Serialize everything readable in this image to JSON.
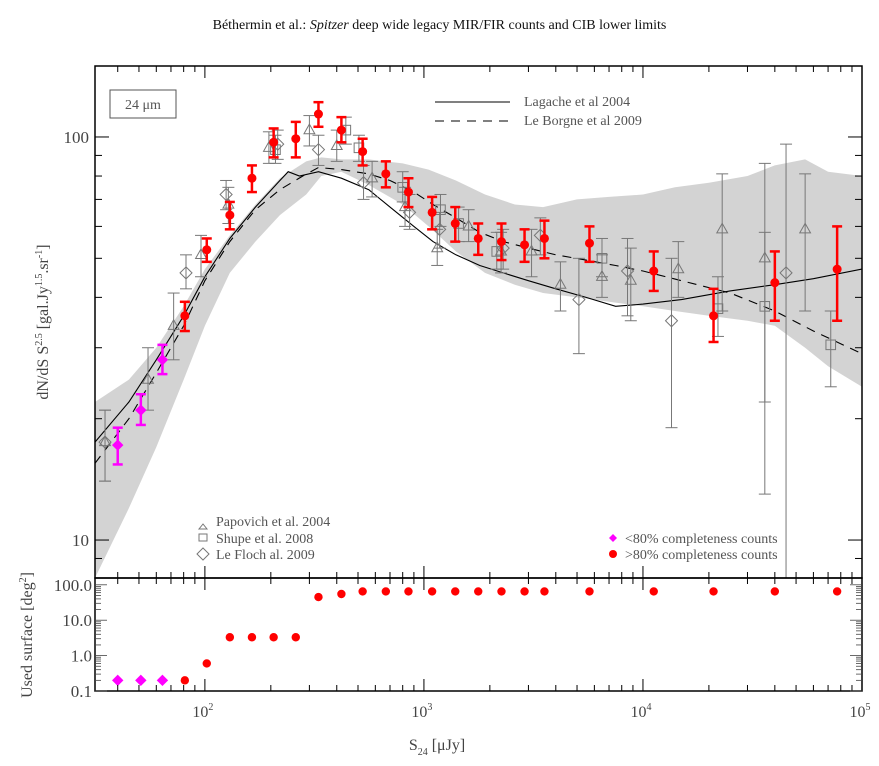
{
  "header": {
    "title_prefix": "Béthermin et al.: ",
    "title_italic": "Spitzer",
    "title_suffix": " deep wide legacy MIR/FIR counts and CIB lower limits"
  },
  "colors": {
    "red_points": "#ff0000",
    "magenta_points": "#ff00ff",
    "literature_points": "#777777",
    "band_fill": "#d3d3d3",
    "model_lines": "#000000"
  },
  "chart_data": [
    {
      "id": "main-panel",
      "type": "scatter",
      "xscale": "log",
      "yscale": "log",
      "xlim": [
        31.5,
        100000
      ],
      "ylim": [
        8.05,
        150
      ],
      "ylabel": "dN/dS S^2.5 [gal.Jy^1.5.sr^-1]",
      "ylabel_parts": {
        "main": "dN/dS S",
        "sup1": "2.5",
        "mid": " [gal.Jy",
        "sup2": "1.5",
        "mid2": ".sr",
        "sup3": "-1",
        "end": "]"
      },
      "yticks": [
        {
          "value": 10,
          "label": "10"
        },
        {
          "value": 100,
          "label": "100"
        }
      ],
      "annotation_box": "24 μm",
      "legend_lines": [
        {
          "label": "Lagache et al 2004",
          "style": "solid"
        },
        {
          "label": "Le Borgne et al 2009",
          "style": "dashed"
        }
      ],
      "legend_literature": [
        {
          "label": "Papovich et al. 2004",
          "marker": "triangle"
        },
        {
          "label": "Shupe et al. 2008",
          "marker": "square"
        },
        {
          "label": "Le Floch al. 2009",
          "marker": "diamond"
        }
      ],
      "legend_completeness": [
        {
          "label": "<80% completeness counts",
          "marker": "diamond",
          "color": "#ff00ff"
        },
        {
          "label": ">80% completeness counts",
          "marker": "circle",
          "color": "#ff0000"
        }
      ],
      "band": {
        "name": "model uncertainty band",
        "x": [
          31.5,
          45,
          60,
          80,
          100,
          130,
          170,
          220,
          290,
          340,
          420,
          560,
          800,
          1050,
          1400,
          1900,
          2600,
          3500,
          5000,
          7000,
          10000,
          14000,
          20000,
          30000,
          40000,
          55000,
          70000,
          100000
        ],
        "upper": [
          22,
          25,
          30,
          38,
          47,
          57,
          68,
          79,
          87,
          89,
          88,
          88,
          86,
          83,
          78,
          72,
          68,
          67,
          70,
          71,
          72,
          75,
          77,
          80,
          85,
          88,
          82,
          80
        ],
        "lower": [
          8.05,
          12,
          17,
          25,
          34,
          46,
          55,
          64,
          72,
          80,
          82,
          76,
          68,
          60,
          52,
          46,
          43,
          41,
          40,
          39,
          38,
          37,
          36,
          35,
          34,
          30,
          27,
          24
        ]
      },
      "lines": [
        {
          "name": "Lagache et al 2004",
          "style": "solid",
          "x": [
            31.5,
            45,
            60,
            80,
            100,
            130,
            170,
            220,
            240,
            270,
            330,
            420,
            560,
            700,
            900,
            1100,
            1400,
            1800,
            2300,
            3000,
            4000,
            5500,
            7500,
            10000,
            15000,
            25000,
            40000,
            60000,
            100000
          ],
          "y": [
            17.5,
            22,
            28,
            36,
            45,
            56,
            67,
            78,
            82,
            80,
            82,
            79,
            74,
            67,
            60,
            55,
            51,
            48,
            46,
            44,
            42,
            40,
            38,
            38.5,
            39.5,
            41.5,
            43,
            44.5,
            47
          ]
        },
        {
          "name": "Le Borgne et al 2009",
          "style": "dashed",
          "x": [
            31.5,
            45,
            60,
            80,
            100,
            130,
            170,
            220,
            280,
            330,
            420,
            560,
            700,
            900,
            1100,
            1400,
            1800,
            2300,
            3000,
            4000,
            5500,
            7500,
            10000,
            15000,
            25000,
            40000,
            60000,
            100000
          ],
          "y": [
            15.5,
            20,
            26,
            34,
            44,
            55,
            66,
            74,
            80,
            84,
            83,
            81,
            78,
            73,
            68,
            63,
            58,
            55,
            53,
            51,
            49.5,
            48,
            46.5,
            44,
            41,
            37,
            33,
            29
          ]
        }
      ],
      "series": [
        {
          "name": ">80% completeness counts",
          "marker": "circle",
          "color": "#ff0000",
          "points": [
            {
              "x": 81,
              "y": 36,
              "lo": 33,
              "hi": 39
            },
            {
              "x": 102,
              "y": 52.5,
              "lo": 49,
              "hi": 56
            },
            {
              "x": 130,
              "y": 64,
              "lo": 59,
              "hi": 69
            },
            {
              "x": 164,
              "y": 79,
              "lo": 73,
              "hi": 85
            },
            {
              "x": 206,
              "y": 97,
              "lo": 89,
              "hi": 105
            },
            {
              "x": 260,
              "y": 99,
              "lo": 89,
              "hi": 109
            },
            {
              "x": 330,
              "y": 114,
              "lo": 106,
              "hi": 122
            },
            {
              "x": 420,
              "y": 104,
              "lo": 97,
              "hi": 112
            },
            {
              "x": 525,
              "y": 92,
              "lo": 85,
              "hi": 99
            },
            {
              "x": 670,
              "y": 81,
              "lo": 75,
              "hi": 87
            },
            {
              "x": 850,
              "y": 73,
              "lo": 67,
              "hi": 79
            },
            {
              "x": 1090,
              "y": 65,
              "lo": 59,
              "hi": 71
            },
            {
              "x": 1390,
              "y": 61,
              "lo": 55,
              "hi": 67
            },
            {
              "x": 1770,
              "y": 56,
              "lo": 51,
              "hi": 61
            },
            {
              "x": 2260,
              "y": 55,
              "lo": 49.5,
              "hi": 61
            },
            {
              "x": 2880,
              "y": 54,
              "lo": 49,
              "hi": 59
            },
            {
              "x": 3550,
              "y": 56,
              "lo": 50,
              "hi": 62
            },
            {
              "x": 5700,
              "y": 54.5,
              "lo": 49,
              "hi": 60
            },
            {
              "x": 11200,
              "y": 46.5,
              "lo": 41.5,
              "hi": 52
            },
            {
              "x": 21000,
              "y": 36,
              "lo": 31,
              "hi": 42
            },
            {
              "x": 40000,
              "y": 43.5,
              "lo": 35,
              "hi": 52
            },
            {
              "x": 77000,
              "y": 47,
              "lo": 35,
              "hi": 60
            }
          ]
        },
        {
          "name": "<80% completeness counts",
          "marker": "diamond",
          "color": "#ff00ff",
          "points": [
            {
              "x": 40,
              "y": 17.2,
              "lo": 15.4,
              "hi": 19
            },
            {
              "x": 51,
              "y": 21,
              "lo": 19.3,
              "hi": 23
            },
            {
              "x": 64,
              "y": 28,
              "lo": 25.8,
              "hi": 30.5
            }
          ]
        },
        {
          "name": "Papovich et al. 2004",
          "marker": "triangle",
          "color": "#777777",
          "points": [
            {
              "x": 35,
              "y": 17.5,
              "lo": 14,
              "hi": 21
            },
            {
              "x": 55,
              "y": 25,
              "lo": 21,
              "hi": 30
            },
            {
              "x": 72,
              "y": 34,
              "lo": 28,
              "hi": 41
            },
            {
              "x": 96,
              "y": 51,
              "lo": 45,
              "hi": 57
            },
            {
              "x": 128,
              "y": 68,
              "lo": 61,
              "hi": 75
            },
            {
              "x": 196,
              "y": 94,
              "lo": 86,
              "hi": 103
            },
            {
              "x": 300,
              "y": 104,
              "lo": 95,
              "hi": 113
            },
            {
              "x": 400,
              "y": 95,
              "lo": 87,
              "hi": 104
            },
            {
              "x": 580,
              "y": 79,
              "lo": 71,
              "hi": 87
            },
            {
              "x": 820,
              "y": 67,
              "lo": 60,
              "hi": 75
            },
            {
              "x": 1150,
              "y": 53,
              "lo": 48,
              "hi": 59
            },
            {
              "x": 1600,
              "y": 60,
              "lo": 55,
              "hi": 66
            },
            {
              "x": 2250,
              "y": 52,
              "lo": 46,
              "hi": 58
            },
            {
              "x": 3100,
              "y": 52,
              "lo": 45,
              "hi": 59
            },
            {
              "x": 4200,
              "y": 43,
              "lo": 37,
              "hi": 49
            },
            {
              "x": 6500,
              "y": 45,
              "lo": 40,
              "hi": 51
            },
            {
              "x": 8800,
              "y": 44,
              "lo": 35,
              "hi": 53
            },
            {
              "x": 14500,
              "y": 47,
              "lo": 40,
              "hi": 55
            },
            {
              "x": 23000,
              "y": 59,
              "lo": 37,
              "hi": 81
            },
            {
              "x": 36000,
              "y": 50,
              "lo": 13,
              "hi": 86
            },
            {
              "x": 55000,
              "y": 59,
              "lo": 37,
              "hi": 81
            }
          ]
        },
        {
          "name": "Shupe et al. 2008",
          "marker": "square",
          "color": "#777777",
          "points": [
            {
              "x": 210,
              "y": 93,
              "lo": 86,
              "hi": 101
            },
            {
              "x": 440,
              "y": 104,
              "lo": 96,
              "hi": 112
            },
            {
              "x": 505,
              "y": 94,
              "lo": 87,
              "hi": 101
            },
            {
              "x": 800,
              "y": 75,
              "lo": 69,
              "hi": 82
            },
            {
              "x": 1190,
              "y": 66,
              "lo": 60,
              "hi": 72
            },
            {
              "x": 1440,
              "y": 61,
              "lo": 55,
              "hi": 67
            },
            {
              "x": 2150,
              "y": 52,
              "lo": 47,
              "hi": 58
            },
            {
              "x": 6500,
              "y": 50,
              "lo": 45,
              "hi": 56
            },
            {
              "x": 22000,
              "y": 37.5,
              "lo": 32,
              "hi": 45
            },
            {
              "x": 36000,
              "y": 38,
              "lo": 22,
              "hi": 58
            },
            {
              "x": 72000,
              "y": 30.5,
              "lo": 24,
              "hi": 37
            }
          ]
        },
        {
          "name": "Le Floch al. 2009",
          "marker": "diamond",
          "color": "#777777",
          "points": [
            {
              "x": 35,
              "y": 17.5,
              "lo": 14,
              "hi": 21
            },
            {
              "x": 82,
              "y": 46,
              "lo": 42,
              "hi": 51
            },
            {
              "x": 125,
              "y": 72,
              "lo": 66,
              "hi": 78
            },
            {
              "x": 215,
              "y": 96,
              "lo": 88,
              "hi": 104
            },
            {
              "x": 330,
              "y": 93,
              "lo": 85,
              "hi": 101
            },
            {
              "x": 530,
              "y": 77,
              "lo": 70,
              "hi": 85
            },
            {
              "x": 860,
              "y": 65,
              "lo": 59,
              "hi": 72
            },
            {
              "x": 1180,
              "y": 59,
              "lo": 53,
              "hi": 65
            },
            {
              "x": 2300,
              "y": 53,
              "lo": 47,
              "hi": 59
            },
            {
              "x": 3400,
              "y": 57,
              "lo": 51,
              "hi": 63
            },
            {
              "x": 5100,
              "y": 39.5,
              "lo": 29,
              "hi": 50
            },
            {
              "x": 8500,
              "y": 46.5,
              "lo": 36,
              "hi": 56
            },
            {
              "x": 13500,
              "y": 35,
              "lo": 19,
              "hi": 50
            },
            {
              "x": 45000,
              "y": 46,
              "lo": 8.05,
              "hi": 96
            }
          ]
        }
      ]
    },
    {
      "id": "lower-panel",
      "type": "scatter",
      "xscale": "log",
      "yscale": "log",
      "xlim": [
        31.5,
        100000
      ],
      "ylim": [
        0.1,
        120
      ],
      "xlabel": "S24 [μJy]",
      "xlabel_parts": {
        "main": "S",
        "sub": "24",
        "unit": " [μJy]"
      },
      "ylabel": "Used surface [deg^2]",
      "ylabel_parts": {
        "main": "Used surface [deg",
        "sup": "2",
        "end": "]"
      },
      "xticks": [
        {
          "value": 100,
          "base": "10",
          "exp": "2"
        },
        {
          "value": 1000,
          "base": "10",
          "exp": "3"
        },
        {
          "value": 10000,
          "base": "10",
          "exp": "4"
        },
        {
          "value": 100000,
          "base": "10",
          "exp": "5"
        }
      ],
      "yticks": [
        {
          "value": 0.1,
          "label": "0.1"
        },
        {
          "value": 1,
          "label": "1.0"
        },
        {
          "value": 10,
          "label": "10.0"
        },
        {
          "value": 100,
          "label": "100.0"
        }
      ],
      "series": [
        {
          "name": "<80% completeness counts",
          "marker": "diamond",
          "color": "#ff00ff",
          "points": [
            {
              "x": 40,
              "y": 0.2
            },
            {
              "x": 51,
              "y": 0.2
            },
            {
              "x": 64,
              "y": 0.2
            }
          ]
        },
        {
          "name": ">80% completeness counts",
          "marker": "circle",
          "color": "#ff0000",
          "points": [
            {
              "x": 81,
              "y": 0.2
            },
            {
              "x": 102,
              "y": 0.6
            },
            {
              "x": 130,
              "y": 3.3
            },
            {
              "x": 164,
              "y": 3.3
            },
            {
              "x": 206,
              "y": 3.3
            },
            {
              "x": 260,
              "y": 3.3
            },
            {
              "x": 330,
              "y": 45
            },
            {
              "x": 420,
              "y": 55
            },
            {
              "x": 525,
              "y": 65
            },
            {
              "x": 670,
              "y": 65
            },
            {
              "x": 850,
              "y": 65
            },
            {
              "x": 1090,
              "y": 65
            },
            {
              "x": 1390,
              "y": 65
            },
            {
              "x": 1770,
              "y": 65
            },
            {
              "x": 2260,
              "y": 65
            },
            {
              "x": 2880,
              "y": 65
            },
            {
              "x": 3550,
              "y": 65
            },
            {
              "x": 5700,
              "y": 65
            },
            {
              "x": 11200,
              "y": 65
            },
            {
              "x": 21000,
              "y": 65
            },
            {
              "x": 40000,
              "y": 65
            },
            {
              "x": 77000,
              "y": 65
            }
          ]
        }
      ]
    }
  ]
}
